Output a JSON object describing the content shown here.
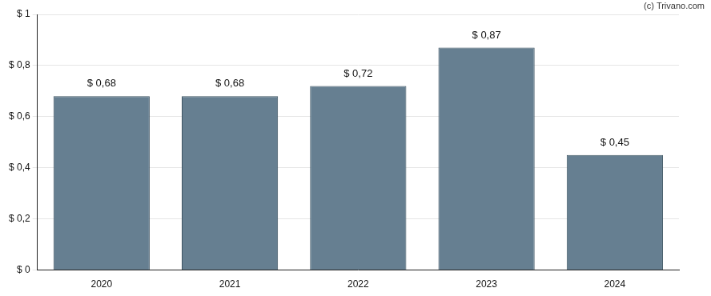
{
  "chart_data": {
    "type": "bar",
    "annotations": [
      "(c) Trivano.com"
    ],
    "categories": [
      "2020",
      "2021",
      "2022",
      "2023",
      "2024"
    ],
    "values": [
      0.68,
      0.68,
      0.72,
      0.87,
      0.45
    ],
    "value_labels": [
      "$ 0,68",
      "$ 0,68",
      "$ 0,72",
      "$ 0,87",
      "$ 0,45"
    ],
    "data_labels": true,
    "color": "#667f91",
    "ylim": [
      0,
      1
    ],
    "yticks": [
      {
        "value": 0,
        "label": "$ 0"
      },
      {
        "value": 0.2,
        "label": "$ 0,2"
      },
      {
        "value": 0.4,
        "label": "$ 0,4"
      },
      {
        "value": 0.6,
        "label": "$ 0,6"
      },
      {
        "value": 0.8,
        "label": "$ 0,8"
      },
      {
        "value": 1,
        "label": "$ 1"
      }
    ],
    "grid": true
  }
}
